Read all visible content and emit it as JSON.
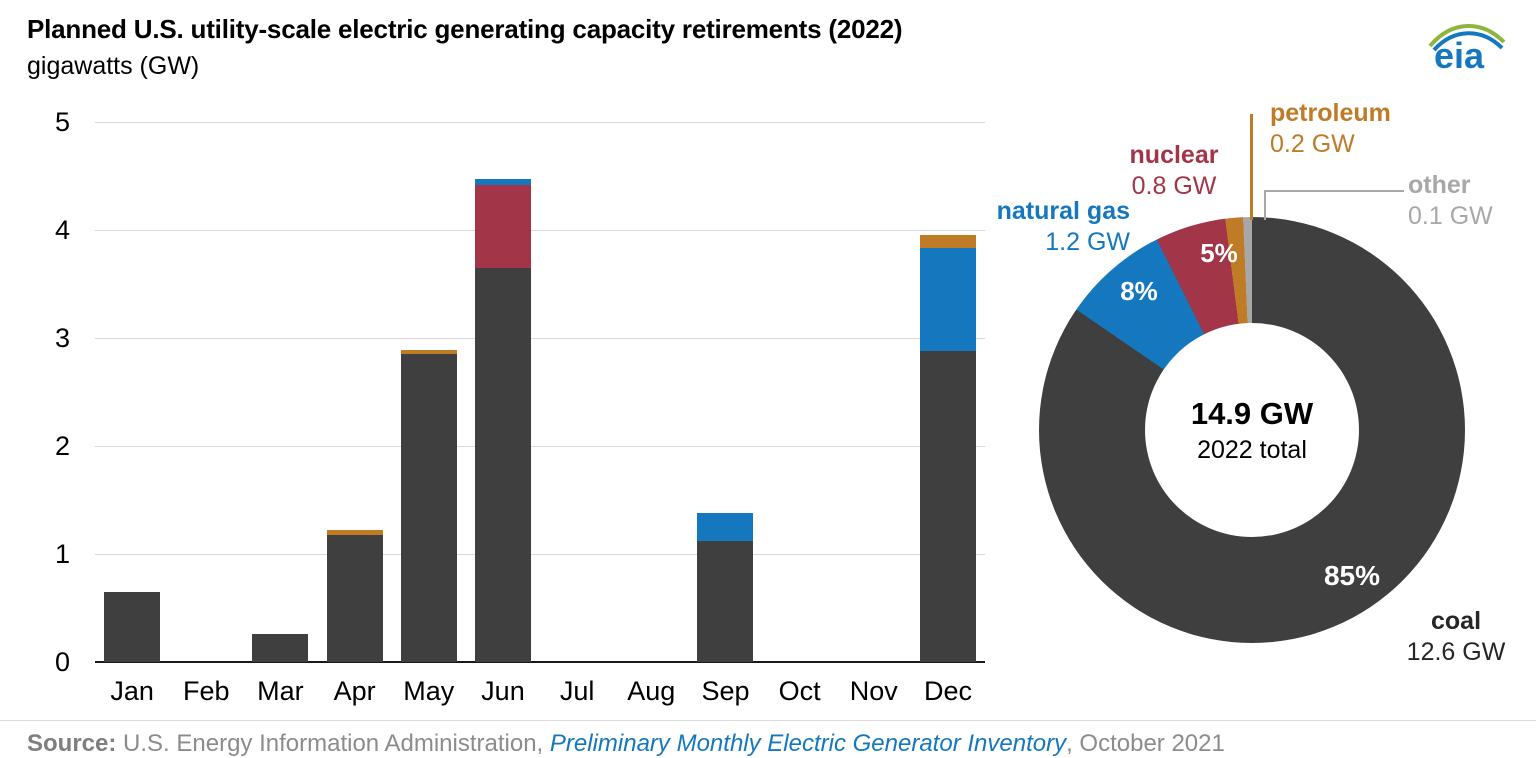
{
  "header": {
    "title": "Planned U.S. utility-scale electric generating capacity retirements (2022)",
    "subtitle": "gigawatts (GW)",
    "logo_text": "eia"
  },
  "colors": {
    "coal": "#3f3f3f",
    "natural_gas": "#1578be",
    "nuclear": "#a23648",
    "petroleum": "#c07b27",
    "other": "#a8a8a8",
    "grid": "#d9d9d9",
    "axis": "#1a1a1a",
    "source_text": "#8c8c8c",
    "link": "#1578be",
    "coal_label_text": "#262626"
  },
  "chart_data": [
    {
      "type": "bar",
      "stacked": true,
      "title": "Planned U.S. utility-scale electric generating capacity retirements (2022)",
      "ylabel": "gigawatts (GW)",
      "unit": "GW",
      "ylim": [
        0,
        5
      ],
      "yticks": [
        0,
        1,
        2,
        3,
        4,
        5
      ],
      "grid": true,
      "categories": [
        "Jan",
        "Feb",
        "Mar",
        "Apr",
        "May",
        "Jun",
        "Jul",
        "Aug",
        "Sep",
        "Oct",
        "Nov",
        "Dec"
      ],
      "series": [
        {
          "name": "coal",
          "color_key": "coal",
          "values": [
            0.65,
            0,
            0.26,
            1.18,
            2.85,
            3.65,
            0,
            0,
            1.12,
            0,
            0,
            2.88
          ]
        },
        {
          "name": "nuclear",
          "color_key": "nuclear",
          "values": [
            0,
            0,
            0,
            0,
            0,
            0.77,
            0,
            0,
            0,
            0,
            0,
            0
          ]
        },
        {
          "name": "natural gas",
          "color_key": "natural_gas",
          "values": [
            0,
            0,
            0,
            0,
            0,
            0.05,
            0,
            0,
            0.26,
            0,
            0,
            0.95
          ]
        },
        {
          "name": "petroleum",
          "color_key": "petroleum",
          "values": [
            0,
            0,
            0,
            0.04,
            0.04,
            0,
            0,
            0,
            0,
            0,
            0,
            0.12
          ]
        }
      ]
    },
    {
      "type": "donut",
      "total_label": "14.9 GW",
      "total_sublabel": "2022 total",
      "slices": [
        {
          "name": "coal",
          "value_gw": 12.6,
          "pct_label": "85%",
          "color_key": "coal",
          "label": "coal",
          "value_label": "12.6 GW"
        },
        {
          "name": "natural gas",
          "value_gw": 1.2,
          "pct_label": "8%",
          "color_key": "natural_gas",
          "label": "natural gas",
          "value_label": "1.2 GW"
        },
        {
          "name": "nuclear",
          "value_gw": 0.8,
          "pct_label": "5%",
          "color_key": "nuclear",
          "label": "nuclear",
          "value_label": "0.8 GW"
        },
        {
          "name": "petroleum",
          "value_gw": 0.2,
          "pct_label": "",
          "color_key": "petroleum",
          "label": "petroleum",
          "value_label": "0.2 GW"
        },
        {
          "name": "other",
          "value_gw": 0.1,
          "pct_label": "",
          "color_key": "other",
          "label": "other",
          "value_label": "0.1 GW"
        }
      ]
    }
  ],
  "footer": {
    "source_label": "Source:",
    "source_text": " U.S. Energy Information Administration, ",
    "source_link": "Preliminary Monthly Electric Generator Inventory",
    "source_suffix": ", October 2021"
  }
}
